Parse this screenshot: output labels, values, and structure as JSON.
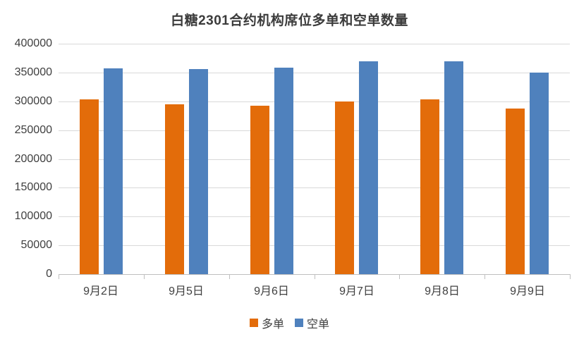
{
  "chart_data": {
    "type": "bar",
    "title": "白糖2301合约机构席位多单和空单数量",
    "categories": [
      "9月2日",
      "9月5日",
      "9月6日",
      "9月7日",
      "9月8日",
      "9月9日"
    ],
    "series": [
      {
        "name": "多单",
        "color": "#E36C0A",
        "values": [
          303000,
          295000,
          293000,
          300000,
          304000,
          287000
        ]
      },
      {
        "name": "空单",
        "color": "#4F81BD",
        "values": [
          357000,
          356000,
          358000,
          370000,
          370000,
          350000
        ]
      }
    ],
    "ylim": [
      0,
      400000
    ],
    "ytick_step": 50000,
    "yticks": [
      "0",
      "50000",
      "100000",
      "150000",
      "200000",
      "250000",
      "300000",
      "350000",
      "400000"
    ],
    "xlabel": "",
    "ylabel": "",
    "grid": true,
    "legend_position": "bottom"
  },
  "colors": {
    "background": "#ffffff",
    "gridline": "#d9d9d9",
    "axis_line": "#bfbfbf",
    "text": "#3f3f3f",
    "long_series": "#E36C0A",
    "short_series": "#4F81BD"
  }
}
